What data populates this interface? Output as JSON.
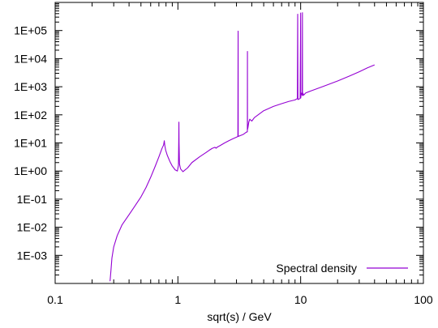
{
  "chart_data": {
    "type": "line",
    "title": "",
    "xlabel": "sqrt(s) / GeV",
    "ylabel": "",
    "x_scale": "log",
    "y_scale": "log",
    "xlim": [
      0.1,
      100
    ],
    "ylim": [
      0.0001,
      1000000
    ],
    "x_ticks": [
      {
        "value": 0.1,
        "label": "0.1"
      },
      {
        "value": 1,
        "label": "1"
      },
      {
        "value": 10,
        "label": "10"
      },
      {
        "value": 100,
        "label": "100"
      }
    ],
    "y_ticks": [
      {
        "value": 0.001,
        "label": "1E-03"
      },
      {
        "value": 0.01,
        "label": "1E-02"
      },
      {
        "value": 0.1,
        "label": "1E-01"
      },
      {
        "value": 1,
        "label": "1E+00"
      },
      {
        "value": 10,
        "label": "1E+01"
      },
      {
        "value": 100,
        "label": "1E+02"
      },
      {
        "value": 1000,
        "label": "1E+03"
      },
      {
        "value": 10000,
        "label": "1E+04"
      },
      {
        "value": 100000,
        "label": "1E+05"
      }
    ],
    "grid": false,
    "legend_position": "bottom-right",
    "series": [
      {
        "name": "Spectral density",
        "color": "#9400d3",
        "x": [
          0.28,
          0.285,
          0.29,
          0.3,
          0.32,
          0.35,
          0.4,
          0.45,
          0.5,
          0.55,
          0.6,
          0.65,
          0.7,
          0.74,
          0.765,
          0.775,
          0.78,
          0.785,
          0.795,
          0.82,
          0.86,
          0.9,
          0.95,
          0.99,
          1.01,
          1.016,
          1.019,
          1.022,
          1.03,
          1.05,
          1.1,
          1.2,
          1.3,
          1.5,
          1.7,
          1.8,
          1.9,
          2.0,
          2.05,
          2.1,
          2.2,
          2.4,
          2.6,
          2.8,
          3.0,
          3.08,
          3.094,
          3.097,
          3.1,
          3.2,
          3.4,
          3.6,
          3.68,
          3.686,
          3.69,
          3.72,
          3.78,
          3.85,
          4.0,
          4.2,
          4.5,
          5.0,
          6.0,
          7.0,
          8.0,
          9.0,
          9.4,
          9.46,
          9.5,
          9.9,
          10.0,
          10.02,
          10.1,
          10.3,
          10.34,
          10.36,
          10.4,
          10.5,
          10.58,
          11.0,
          12.0,
          15.0,
          20.0,
          25.0,
          30.0,
          35.0,
          40.0
        ],
        "y": [
          0.00012,
          0.0003,
          0.0008,
          0.002,
          0.005,
          0.012,
          0.028,
          0.06,
          0.12,
          0.26,
          0.6,
          1.4,
          3.2,
          6.2,
          8.5,
          12,
          9,
          7.5,
          5.5,
          3.6,
          2.2,
          1.5,
          1.1,
          1.0,
          1.6,
          12,
          55,
          10,
          1.8,
          1.2,
          0.95,
          1.3,
          2.0,
          3.2,
          4.6,
          5.5,
          6.4,
          7.0,
          6.5,
          7.2,
          8.0,
          10,
          12,
          14,
          16,
          17,
          95000,
          9000,
          17,
          18,
          20,
          24,
          25,
          18000,
          30,
          35,
          55,
          70,
          60,
          80,
          100,
          140,
          200,
          250,
          300,
          340,
          380,
          380000,
          350,
          380,
          420000,
          400,
          600,
          500,
          430000,
          480,
          600,
          550,
          500,
          600,
          700,
          1000,
          1600,
          2400,
          3400,
          4700,
          6000
        ]
      }
    ]
  }
}
